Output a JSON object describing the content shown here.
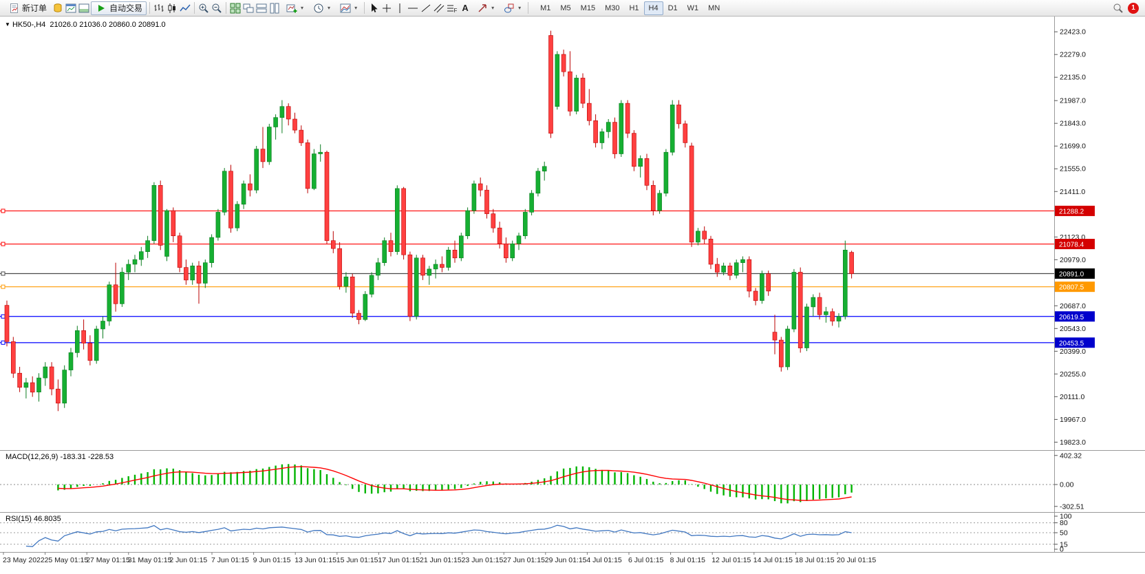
{
  "window": {
    "notification_count": "1"
  },
  "toolbar": {
    "new_order_label": "新订单",
    "auto_trading_label": "自动交易",
    "timeframes": [
      "M1",
      "M5",
      "M15",
      "M30",
      "H1",
      "H4",
      "D1",
      "W1",
      "MN"
    ],
    "active_timeframe": "H4"
  },
  "icons": {
    "caret": "▾",
    "marker_down": "▼",
    "text_tool": "A",
    "fibo_letter": "F"
  },
  "chart_data": {
    "type": "candlestick",
    "title": "HK50-,H4",
    "symbol_label": "HK50-,H4",
    "ohlc_display": "21026.0 21036.0 20860.0 20891.0",
    "bull_color": "#16AF32",
    "bull_border": "#0B7D20",
    "bear_color": "#FF4040",
    "bear_border": "#BB0000",
    "price_range_top": 22450,
    "price_range_bottom": 19790,
    "price_axis_ticks": [
      22423,
      22279,
      22135,
      21987,
      21843,
      21699,
      21555,
      21411,
      21123,
      20979,
      20687,
      20543,
      20399,
      20255,
      20111,
      19967,
      19823
    ],
    "hlines": [
      {
        "price": 21288.2,
        "label": "21288.2",
        "color": "#FF0000",
        "badge_color": "#D40000"
      },
      {
        "price": 21078.4,
        "label": "21078.4",
        "color": "#FF0000",
        "badge_color": "#D40000"
      },
      {
        "price": 20891.0,
        "label": "20891.0",
        "color": "#4A4A4A",
        "badge_color": "#000000"
      },
      {
        "price": 20807.5,
        "label": "20807.5",
        "color": "#FF9900",
        "badge_color": "#FF9900"
      },
      {
        "price": 20619.5,
        "label": "20619.5",
        "color": "#0000FF",
        "badge_color": "#0000CC"
      },
      {
        "price": 20453.5,
        "label": "20453.5",
        "color": "#0000FF",
        "badge_color": "#0000CC"
      }
    ],
    "candles": [
      [
        20690,
        20720,
        20430,
        20460
      ],
      [
        20460,
        20490,
        20230,
        20260
      ],
      [
        20260,
        20300,
        20140,
        20170
      ],
      [
        20170,
        20230,
        20100,
        20200
      ],
      [
        20200,
        20240,
        20110,
        20140
      ],
      [
        20140,
        20260,
        20080,
        20230
      ],
      [
        20230,
        20330,
        20180,
        20300
      ],
      [
        20300,
        20330,
        20120,
        20160
      ],
      [
        20160,
        20220,
        20020,
        20070
      ],
      [
        20070,
        20310,
        20040,
        20280
      ],
      [
        20280,
        20420,
        20240,
        20390
      ],
      [
        20390,
        20560,
        20360,
        20530
      ],
      [
        20530,
        20600,
        20410,
        20450
      ],
      [
        20450,
        20500,
        20310,
        20340
      ],
      [
        20340,
        20560,
        20320,
        20540
      ],
      [
        20540,
        20620,
        20480,
        20590
      ],
      [
        20590,
        20840,
        20560,
        20820
      ],
      [
        20820,
        20960,
        20650,
        20700
      ],
      [
        20700,
        20930,
        20680,
        20900
      ],
      [
        20900,
        20980,
        20850,
        20950
      ],
      [
        20950,
        21010,
        20900,
        20980
      ],
      [
        20980,
        21060,
        20940,
        21030
      ],
      [
        21030,
        21130,
        20990,
        21100
      ],
      [
        21100,
        21470,
        21080,
        21450
      ],
      [
        21450,
        21480,
        21040,
        21070
      ],
      [
        21000,
        21300,
        20970,
        21290
      ],
      [
        21290,
        21310,
        21090,
        21130
      ],
      [
        21130,
        21150,
        20900,
        20930
      ],
      [
        20930,
        20980,
        20820,
        20850
      ],
      [
        20850,
        20960,
        20820,
        20940
      ],
      [
        20940,
        20970,
        20700,
        20830
      ],
      [
        20830,
        20980,
        20800,
        20960
      ],
      [
        20960,
        21140,
        20930,
        21120
      ],
      [
        21120,
        21300,
        21100,
        21280
      ],
      [
        21280,
        21560,
        21260,
        21540
      ],
      [
        21540,
        21580,
        21150,
        21180
      ],
      [
        21180,
        21350,
        21160,
        21330
      ],
      [
        21330,
        21480,
        21300,
        21460
      ],
      [
        21460,
        21520,
        21380,
        21420
      ],
      [
        21420,
        21700,
        21400,
        21680
      ],
      [
        21680,
        21820,
        21560,
        21600
      ],
      [
        21600,
        21840,
        21580,
        21820
      ],
      [
        21820,
        21900,
        21740,
        21880
      ],
      [
        21880,
        21990,
        21780,
        21950
      ],
      [
        21950,
        21970,
        21830,
        21870
      ],
      [
        21870,
        21910,
        21780,
        21800
      ],
      [
        21800,
        21830,
        21700,
        21720
      ],
      [
        21720,
        21740,
        21400,
        21430
      ],
      [
        21430,
        21680,
        21420,
        21650
      ],
      [
        21650,
        21710,
        21600,
        21660
      ],
      [
        21660,
        21670,
        21080,
        21100
      ],
      [
        21100,
        21160,
        21020,
        21050
      ],
      [
        21050,
        21090,
        20790,
        20810
      ],
      [
        20810,
        20900,
        20770,
        20870
      ],
      [
        20870,
        20890,
        20610,
        20640
      ],
      [
        20640,
        20660,
        20570,
        20600
      ],
      [
        20600,
        20780,
        20590,
        20760
      ],
      [
        20760,
        20900,
        20740,
        20880
      ],
      [
        20880,
        20990,
        20850,
        20960
      ],
      [
        20960,
        21120,
        20940,
        21100
      ],
      [
        21100,
        21150,
        21000,
        21030
      ],
      [
        21030,
        21450,
        21010,
        21430
      ],
      [
        21430,
        21440,
        20980,
        21010
      ],
      [
        21010,
        21030,
        20590,
        20620
      ],
      [
        20620,
        21010,
        20600,
        20990
      ],
      [
        20990,
        21010,
        20850,
        20880
      ],
      [
        20880,
        20940,
        20820,
        20920
      ],
      [
        20920,
        20980,
        20860,
        20950
      ],
      [
        20950,
        21000,
        20900,
        20930
      ],
      [
        20930,
        21060,
        20910,
        21040
      ],
      [
        21040,
        21100,
        20960,
        20990
      ],
      [
        20990,
        21150,
        20970,
        21130
      ],
      [
        21130,
        21310,
        21110,
        21290
      ],
      [
        21290,
        21480,
        21270,
        21460
      ],
      [
        21460,
        21500,
        21380,
        21420
      ],
      [
        21420,
        21450,
        21240,
        21270
      ],
      [
        21270,
        21300,
        21150,
        21180
      ],
      [
        21180,
        21220,
        21050,
        21080
      ],
      [
        21080,
        21120,
        20960,
        20990
      ],
      [
        20990,
        21100,
        20970,
        21080
      ],
      [
        21080,
        21150,
        21040,
        21130
      ],
      [
        21130,
        21300,
        21110,
        21280
      ],
      [
        21280,
        21420,
        21260,
        21400
      ],
      [
        21400,
        21560,
        21380,
        21540
      ],
      [
        21540,
        21600,
        21480,
        21570
      ],
      [
        22400,
        22430,
        21750,
        21780
      ],
      [
        21950,
        22300,
        21930,
        22280
      ],
      [
        22280,
        22310,
        22140,
        22170
      ],
      [
        22170,
        22300,
        21890,
        21920
      ],
      [
        21920,
        22150,
        21900,
        22130
      ],
      [
        22130,
        22160,
        21940,
        21970
      ],
      [
        21970,
        22060,
        21830,
        21860
      ],
      [
        21860,
        21900,
        21690,
        21720
      ],
      [
        21720,
        21810,
        21680,
        21790
      ],
      [
        21790,
        21870,
        21750,
        21850
      ],
      [
        21850,
        21880,
        21620,
        21650
      ],
      [
        21650,
        21990,
        21630,
        21970
      ],
      [
        21970,
        21990,
        21750,
        21780
      ],
      [
        21780,
        21800,
        21540,
        21570
      ],
      [
        21570,
        21640,
        21500,
        21620
      ],
      [
        21620,
        21650,
        21420,
        21450
      ],
      [
        21450,
        21480,
        21260,
        21290
      ],
      [
        21290,
        21420,
        21270,
        21400
      ],
      [
        21400,
        21680,
        21380,
        21660
      ],
      [
        21660,
        21990,
        21640,
        21960
      ],
      [
        21960,
        21990,
        21810,
        21840
      ],
      [
        21840,
        21860,
        21690,
        21720
      ],
      [
        21700,
        21720,
        21060,
        21090
      ],
      [
        21090,
        21180,
        21070,
        21160
      ],
      [
        21160,
        21190,
        21080,
        21110
      ],
      [
        21110,
        21130,
        20920,
        20950
      ],
      [
        20950,
        20990,
        20870,
        20900
      ],
      [
        20900,
        20960,
        20880,
        20940
      ],
      [
        20940,
        20960,
        20850,
        20880
      ],
      [
        20880,
        20980,
        20860,
        20960
      ],
      [
        20960,
        21000,
        20900,
        20980
      ],
      [
        20980,
        21000,
        20740,
        20780
      ],
      [
        20780,
        20800,
        20690,
        20720
      ],
      [
        20720,
        20910,
        20700,
        20890
      ],
      [
        20890,
        20910,
        20750,
        20780
      ],
      [
        20520,
        20630,
        20380,
        20470
      ],
      [
        20470,
        20490,
        20270,
        20300
      ],
      [
        20300,
        20560,
        20280,
        20540
      ],
      [
        20540,
        20920,
        20520,
        20900
      ],
      [
        20900,
        20930,
        20390,
        20420
      ],
      [
        20420,
        20700,
        20400,
        20680
      ],
      [
        20680,
        20760,
        20620,
        20740
      ],
      [
        20740,
        20770,
        20600,
        20630
      ],
      [
        20630,
        20680,
        20580,
        20650
      ],
      [
        20650,
        20670,
        20560,
        20590
      ],
      [
        20590,
        20640,
        20550,
        20620
      ],
      [
        20620,
        21100,
        20600,
        21040
      ],
      [
        21026,
        21036,
        20860,
        20891
      ]
    ],
    "time_labels": [
      "23 May 2022",
      "25 May 01:15",
      "27 May 01:15",
      "31 May 01:15",
      "2 Jun 01:15",
      "7 Jun 01:15",
      "9 Jun 01:15",
      "13 Jun 01:15",
      "15 Jun 01:15",
      "17 Jun 01:15",
      "21 Jun 01:15",
      "23 Jun 01:15",
      "27 Jun 01:15",
      "29 Jun 01:15",
      "4 Jul 01:15",
      "6 Jul 01:15",
      "8 Jul 01:15",
      "12 Jul 01:15",
      "14 Jul 01:15",
      "18 Jul 01:15",
      "20 Jul 01:15"
    ],
    "macd": {
      "label": "MACD(12,26,9) -183.31 -228.53",
      "fast": 12,
      "slow": 26,
      "signal": 9,
      "axis_labels": [
        "402.32",
        "0.00",
        "-302.51"
      ],
      "axis_values": [
        402.32,
        0,
        -302.51
      ],
      "histogram_color": "#00B400",
      "signal_color": "#FF0000"
    },
    "rsi": {
      "label": "RSI(15) 46.8035",
      "period": 15,
      "axis_labels": [
        "100",
        "80",
        "50",
        "15",
        "0"
      ],
      "axis_values": [
        100,
        80,
        50,
        15,
        0
      ],
      "levels": [
        80,
        50,
        15
      ],
      "line_color": "#3F76C0"
    }
  }
}
